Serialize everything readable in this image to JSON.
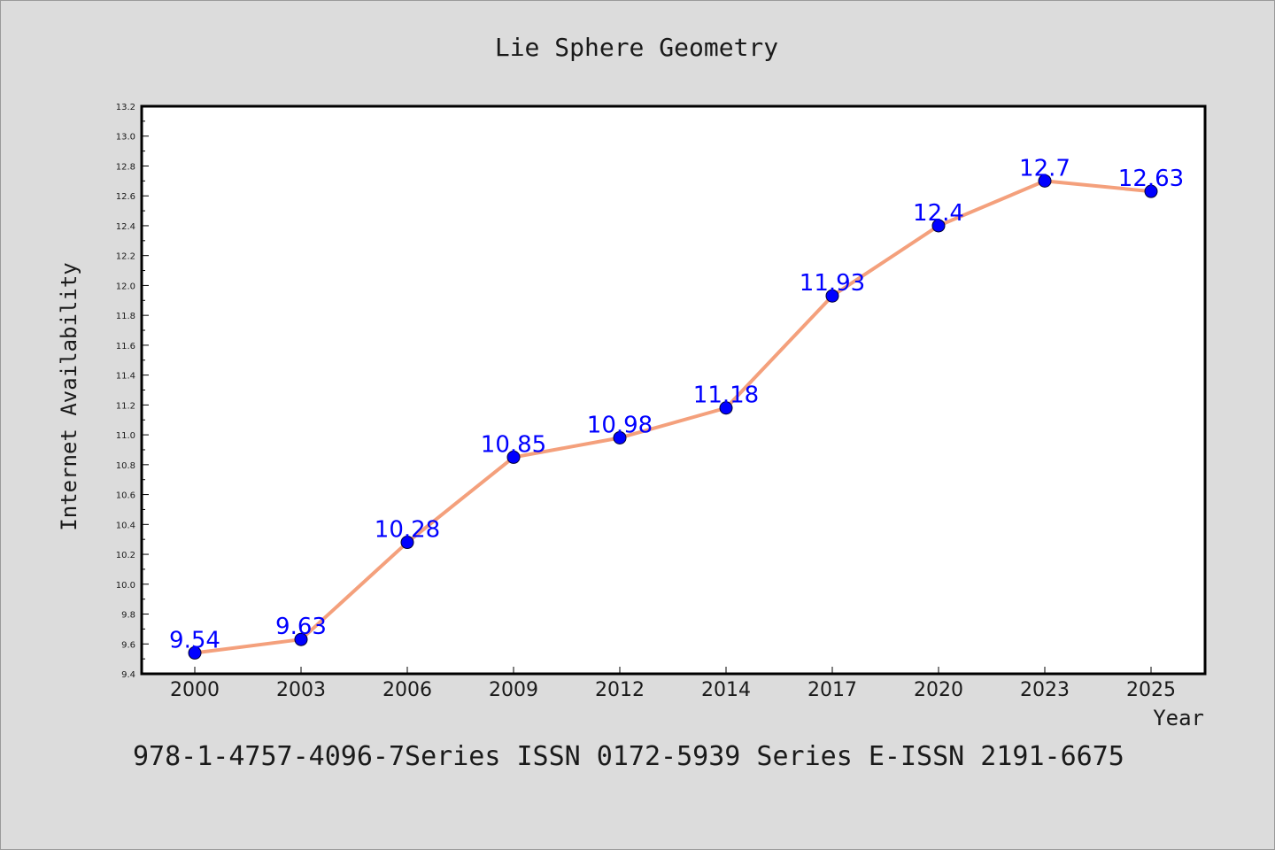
{
  "chart_data": {
    "type": "line",
    "title": "Lie Sphere Geometry",
    "xlabel": "Year",
    "ylabel": "Internet Availability",
    "footer": "978-1-4757-4096-7Series ISSN 0172-5939 Series E-ISSN 2191-6675",
    "categories": [
      "2000",
      "2003",
      "2006",
      "2009",
      "2012",
      "2014",
      "2017",
      "2020",
      "2023",
      "2025"
    ],
    "series": [
      {
        "values": [
          9.54,
          9.63,
          10.28,
          10.85,
          10.98,
          11.18,
          11.93,
          12.4,
          12.7,
          12.63
        ]
      }
    ],
    "data_labels": [
      "9.54",
      "9.63",
      "10.28",
      "10.85",
      "10.98",
      "11.18",
      "11.93",
      "12.4",
      "12.7",
      "12.63"
    ],
    "ylim": [
      9.4,
      13.2
    ],
    "yticks": [
      "9.4",
      "9.6",
      "9.8",
      "10.0",
      "10.2",
      "10.4",
      "10.6",
      "10.8",
      "11.0",
      "11.2",
      "11.4",
      "11.6",
      "11.8",
      "12.0",
      "12.2",
      "12.4",
      "12.6",
      "12.8",
      "13.0",
      "13.2"
    ],
    "grid": false,
    "colors": {
      "line": "#f4a07c",
      "marker": "#0000ff",
      "label": "#0000ff",
      "background": "#dcdcdc",
      "plot_background": "#ffffff"
    }
  }
}
